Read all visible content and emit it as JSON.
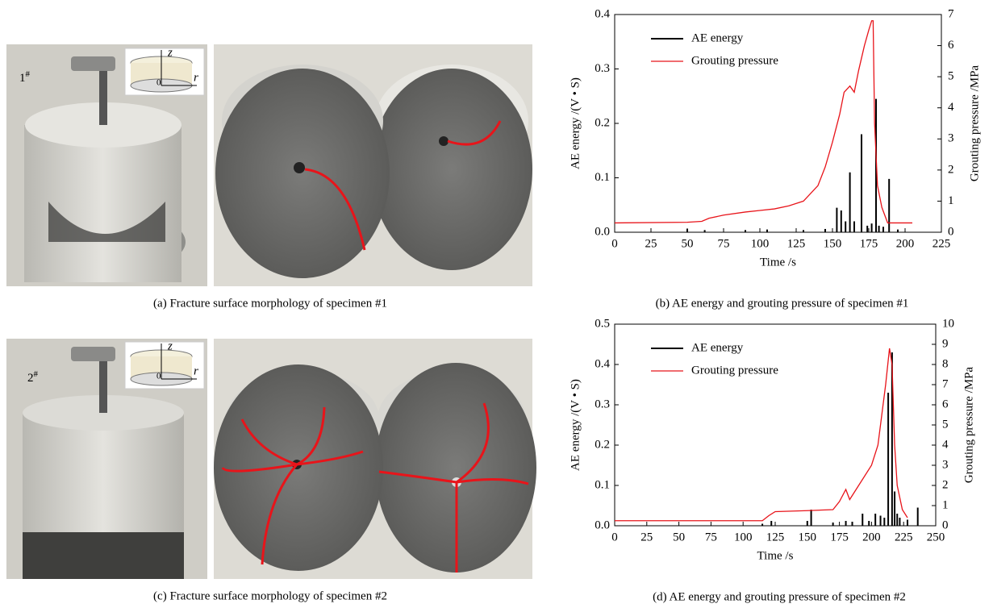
{
  "photos": [
    {
      "label": "1",
      "label_sup": "#",
      "inset": {
        "z": "z",
        "r": "r",
        "origin": "0"
      },
      "caption": "(a) Fracture surface morphology of specimen #1"
    },
    {
      "label": "2",
      "label_sup": "#",
      "inset": {
        "z": "z",
        "r": "r",
        "origin": "0"
      },
      "caption": "(c) Fracture surface morphology of specimen #2"
    }
  ],
  "chart_data": [
    {
      "type": "line",
      "caption": "(b) AE energy and grouting pressure of specimen #1",
      "xlabel": "Time /s",
      "ylabel": "AE energy /(V • S)",
      "y2label": "Grouting pressure /MPa",
      "xlim": [
        0,
        225
      ],
      "xticks": [
        0,
        25,
        50,
        75,
        100,
        125,
        150,
        175,
        200,
        225
      ],
      "ylim": [
        0,
        0.4
      ],
      "yticks": [
        {
          "value": 0,
          "label": "0.0"
        },
        {
          "value": 0.1,
          "label": "0.1"
        },
        {
          "value": 0.2,
          "label": "0.2"
        },
        {
          "value": 0.3,
          "label": "0.3"
        },
        {
          "value": 0.4,
          "label": "0.4"
        }
      ],
      "y2lim": [
        0,
        7
      ],
      "y2ticks": [
        0,
        1,
        2,
        3,
        4,
        5,
        6,
        7
      ],
      "legend": "upper left",
      "series": [
        {
          "name": "AE energy",
          "type": "bar",
          "color": "#000000",
          "x": [
            50,
            62,
            90,
            105,
            130,
            145,
            153,
            156,
            159,
            162,
            165,
            170,
            174,
            177,
            180,
            182,
            185,
            189,
            195
          ],
          "values": [
            0.006,
            0.004,
            0.004,
            0.005,
            0.004,
            0.006,
            0.045,
            0.04,
            0.02,
            0.11,
            0.02,
            0.18,
            0.012,
            0.016,
            0.245,
            0.012,
            0.01,
            0.098,
            0.005
          ]
        },
        {
          "name": "Grouting pressure",
          "type": "line",
          "color": "#e8141a",
          "axis": "y2",
          "x": [
            0,
            50,
            60,
            65,
            75,
            90,
            100,
            110,
            120,
            130,
            140,
            145,
            150,
            155,
            158,
            162,
            165,
            168,
            172,
            175,
            177,
            178,
            179,
            181,
            184,
            188,
            205
          ],
          "values": [
            0.3,
            0.32,
            0.35,
            0.45,
            0.55,
            0.65,
            0.7,
            0.75,
            0.85,
            1.0,
            1.5,
            2.1,
            2.9,
            3.8,
            4.5,
            4.7,
            4.5,
            5.2,
            6.0,
            6.5,
            6.8,
            6.8,
            3.5,
            1.5,
            0.8,
            0.3,
            0.3
          ]
        }
      ]
    },
    {
      "type": "line",
      "caption": "(d) AE energy and grouting pressure of specimen #2",
      "xlabel": "Time /s",
      "ylabel": "AE energy /(V • S)",
      "y2label": "Grouting pressure /MPa",
      "xlim": [
        0,
        250
      ],
      "xticks": [
        0,
        25,
        50,
        75,
        100,
        125,
        150,
        175,
        200,
        225,
        250
      ],
      "ylim": [
        0,
        0.5
      ],
      "yticks": [
        {
          "value": 0,
          "label": "0.0"
        },
        {
          "value": 0.1,
          "label": "0.1"
        },
        {
          "value": 0.2,
          "label": "0.2"
        },
        {
          "value": 0.3,
          "label": "0.3"
        },
        {
          "value": 0.4,
          "label": "0.4"
        },
        {
          "value": 0.5,
          "label": "0.5"
        }
      ],
      "y2lim": [
        0,
        10
      ],
      "y2ticks": [
        0,
        1,
        2,
        3,
        4,
        5,
        6,
        7,
        8,
        9,
        10
      ],
      "legend": "upper left",
      "series": [
        {
          "name": "AE energy",
          "type": "bar",
          "color": "#000000",
          "x": [
            115,
            122,
            150,
            153,
            170,
            180,
            185,
            193,
            198,
            203,
            207,
            210,
            213,
            216,
            218,
            220,
            222,
            228,
            236
          ],
          "values": [
            0.005,
            0.012,
            0.012,
            0.04,
            0.008,
            0.012,
            0.01,
            0.03,
            0.012,
            0.03,
            0.025,
            0.02,
            0.33,
            0.43,
            0.085,
            0.03,
            0.02,
            0.015,
            0.045
          ]
        },
        {
          "name": "Grouting pressure",
          "type": "line",
          "color": "#e8141a",
          "axis": "y2",
          "x": [
            0,
            115,
            120,
            125,
            150,
            170,
            175,
            180,
            183,
            190,
            200,
            205,
            208,
            211,
            214,
            216,
            218,
            220,
            224,
            228
          ],
          "values": [
            0.25,
            0.25,
            0.5,
            0.7,
            0.75,
            0.8,
            1.2,
            1.8,
            1.3,
            2.0,
            3.0,
            4.0,
            5.5,
            7.0,
            8.8,
            8.0,
            4.0,
            2.0,
            0.8,
            0.4
          ]
        }
      ]
    }
  ]
}
